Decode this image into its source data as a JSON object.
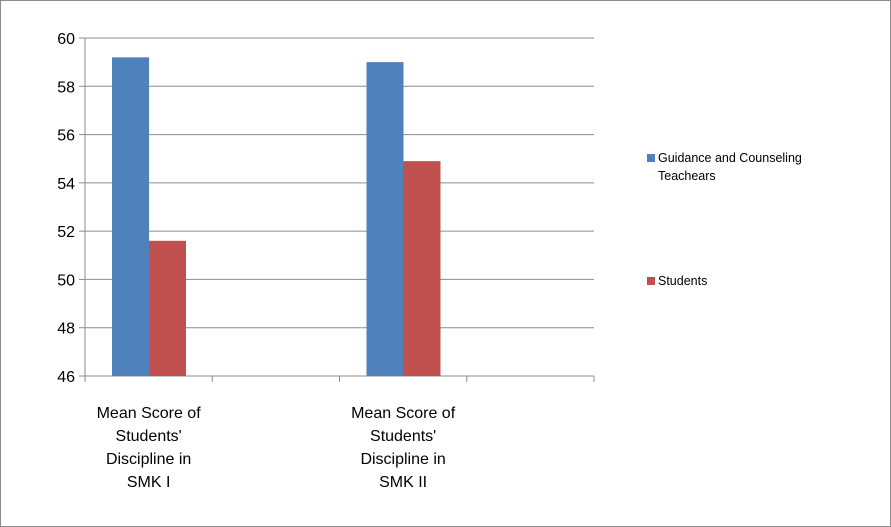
{
  "chart_data": {
    "type": "bar",
    "categories": [
      [
        "Mean Score of",
        "Students'",
        "Discipline in",
        "SMK I"
      ],
      [
        "Mean Score of",
        "Students'",
        "Discipline in",
        "SMK II"
      ]
    ],
    "series": [
      {
        "name": [
          "Guidance and Counseling",
          "Teachears"
        ],
        "color": "#4f81bd",
        "values": [
          59.2,
          59.0
        ]
      },
      {
        "name": [
          "Students"
        ],
        "color": "#c0504d",
        "values": [
          51.6,
          54.9
        ]
      }
    ],
    "ylim": [
      46,
      60
    ],
    "yticks": [
      46,
      48,
      50,
      52,
      54,
      56,
      58,
      60
    ],
    "grid": true,
    "legend": "right",
    "title": "",
    "xlabel": "",
    "ylabel": ""
  }
}
